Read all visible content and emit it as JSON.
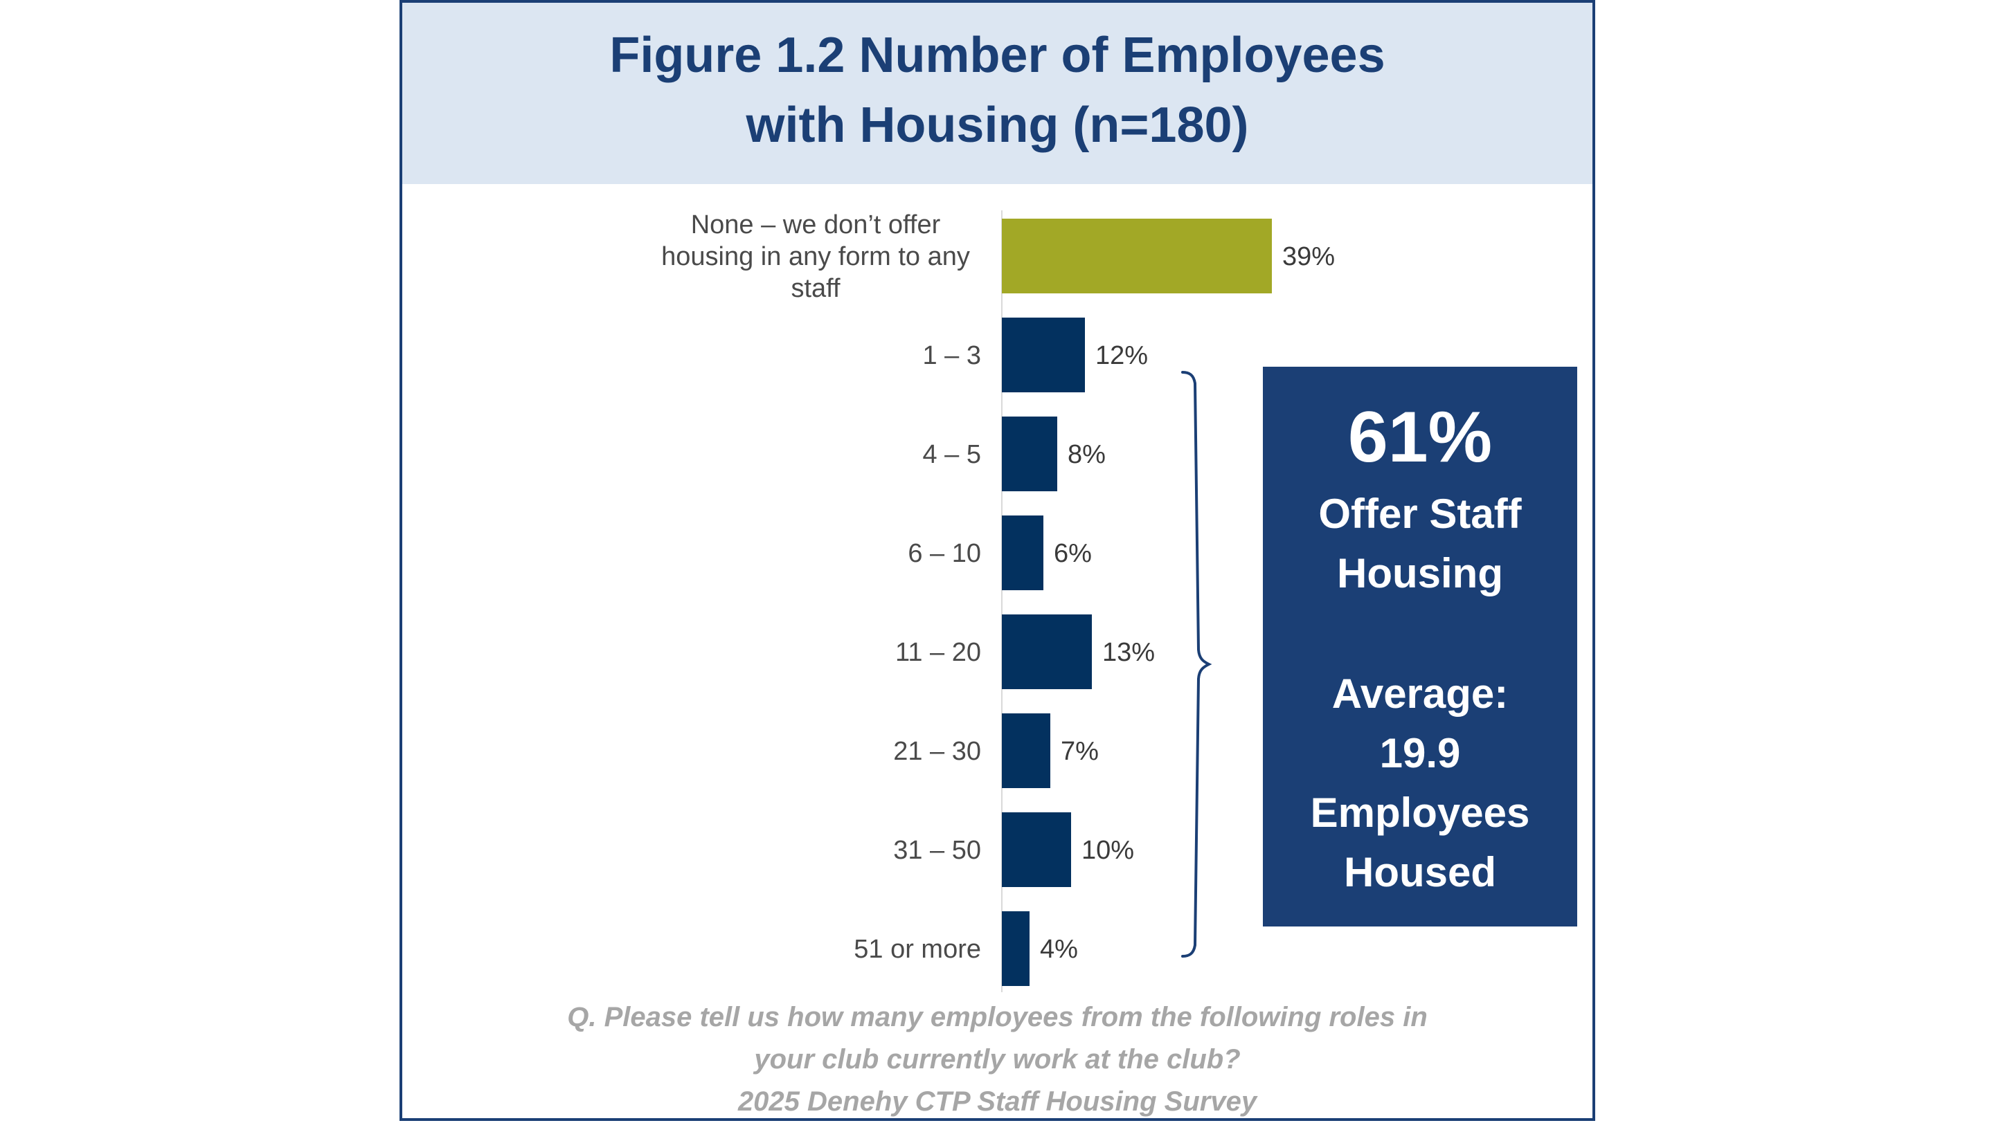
{
  "chart_data": {
    "type": "bar",
    "orientation": "horizontal",
    "title": "Figure 1.2 Number of Employees with Housing (n=180)",
    "title_lines": [
      "Figure 1.2 Number of Employees",
      "with Housing (n=180)"
    ],
    "categories": [
      "None – we don’t offer housing in any form to any staff",
      "1 – 3",
      "4 – 5",
      "6 – 10",
      "11 – 20",
      "21 – 30",
      "31 – 50",
      "51 or more"
    ],
    "category_lines": [
      [
        "None – we don’t offer",
        "housing in any form to any",
        "staff"
      ],
      [
        "1 – 3"
      ],
      [
        "4 – 5"
      ],
      [
        "6 – 10"
      ],
      [
        "11 – 20"
      ],
      [
        "21 – 30"
      ],
      [
        "31 – 50"
      ],
      [
        "51 or more"
      ]
    ],
    "values": [
      39,
      12,
      8,
      6,
      13,
      7,
      10,
      4
    ],
    "value_labels": [
      "39%",
      "12%",
      "8%",
      "6%",
      "13%",
      "7%",
      "10%",
      "4%"
    ],
    "unit": "%",
    "colors": [
      "#a2a826",
      "#03315f",
      "#03315f",
      "#03315f",
      "#03315f",
      "#03315f",
      "#03315f",
      "#03315f"
    ],
    "grid": false,
    "legend": "none"
  },
  "callout": {
    "big_value": "61%",
    "offer_lines": [
      "Offer Staff",
      "Housing"
    ],
    "average_lines": [
      "Average:",
      "19.9",
      "Employees",
      "Housed"
    ]
  },
  "footnote": {
    "lines": [
      "Q. Please tell us how many employees from the following roles in",
      "your club currently work at the club?",
      "2025 Denehy CTP Staff Housing Survey"
    ]
  },
  "colors": {
    "frame": "#1b3f75",
    "title_band": "#dce6f2",
    "title_text": "#1b3f75",
    "callout_bg": "#1b3f75",
    "footnote_text": "#a6a6a6"
  }
}
